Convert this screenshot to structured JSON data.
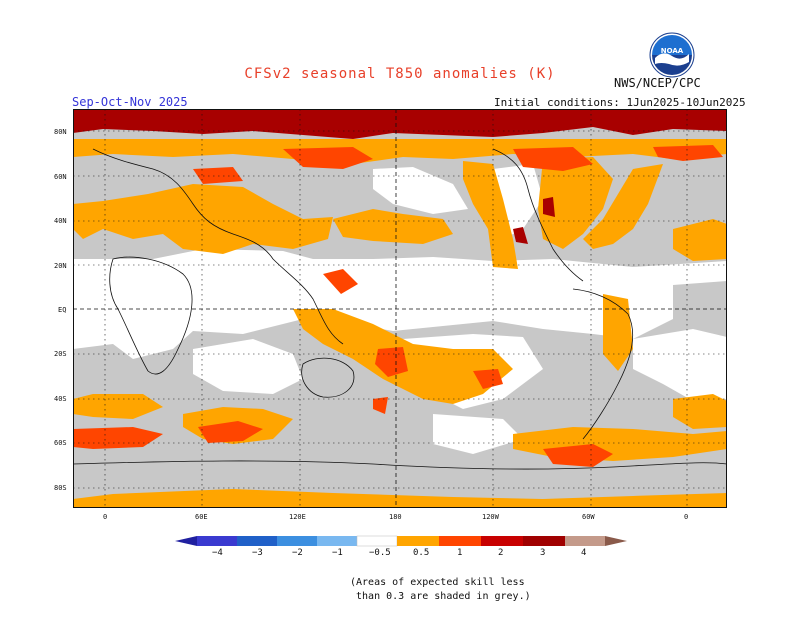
{
  "header": {
    "title": "CFSv2 seasonal T850 anomalies (K)",
    "org": "NWS/NCEP/CPC",
    "season": "Sep-Oct-Nov 2025",
    "initial_conditions": "Initial conditions: 1Jun2025-10Jun2025",
    "logo_text": "NOAA"
  },
  "map": {
    "lat_labels": [
      "80N",
      "60N",
      "40N",
      "20N",
      "EQ",
      "20S",
      "40S",
      "60S",
      "80S"
    ],
    "lon_labels": [
      "0",
      "60E",
      "120E",
      "180",
      "120W",
      "60W",
      "0"
    ],
    "colors": {
      "skill_grey": "#c8c8c8",
      "neutral": "#ffffff",
      "warm_0_5": "#ffa500",
      "warm_1": "#ff4500",
      "warm_2": "#c80000",
      "warm_3": "#a00000",
      "warm_4": "#c49a8a"
    }
  },
  "colorbar": {
    "labels": [
      "−4",
      "−3",
      "−2",
      "−1",
      "−0.5",
      "0.5",
      "1",
      "2",
      "3",
      "4"
    ],
    "colors": [
      "#2020a0",
      "#3a3ad0",
      "#2060c8",
      "#3c8fe0",
      "#79b8f0",
      "#ffffff",
      "#ffa500",
      "#ff4500",
      "#c80000",
      "#a00000",
      "#c49a8a",
      "#8a5a4a"
    ]
  },
  "note": {
    "line1": "(Areas of expected skill less",
    "line2": " than 0.3 are shaded in grey.)"
  }
}
